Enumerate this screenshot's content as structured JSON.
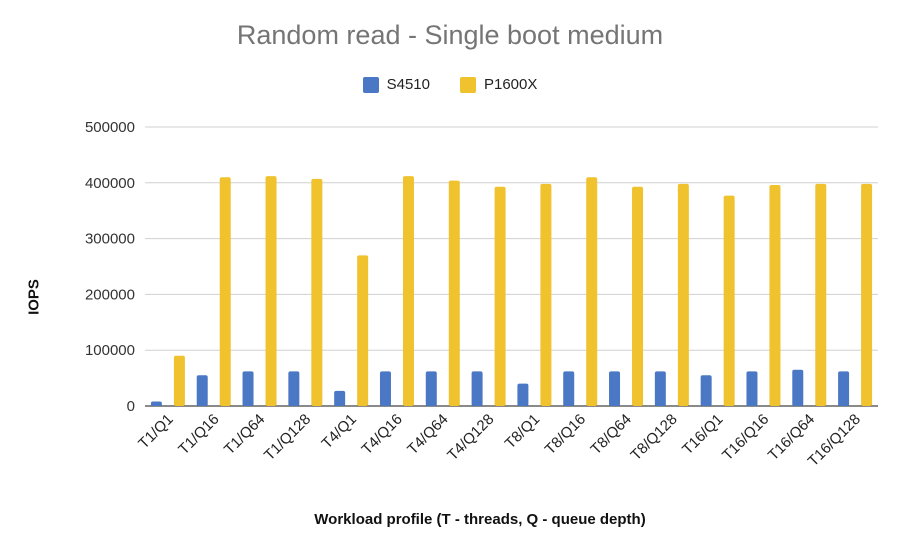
{
  "chart_data": {
    "type": "bar",
    "title": "Random read - Single boot medium",
    "xlabel": "Workload profile (T - threads, Q - queue depth)",
    "ylabel": "IOPS",
    "ylim": [
      0,
      500000
    ],
    "yticks": [
      0,
      100000,
      200000,
      300000,
      400000,
      500000
    ],
    "grid": true,
    "legend_position": "top-center",
    "categories": [
      "T1/Q1",
      "T1/Q16",
      "T1/Q64",
      "T1/Q128",
      "T4/Q1",
      "T4/Q16",
      "T4/Q64",
      "T4/Q128",
      "T8/Q1",
      "T8/Q16",
      "T8/Q64",
      "T8/Q128",
      "T16/Q1",
      "T16/Q16",
      "T16/Q64",
      "T16/Q128"
    ],
    "series": [
      {
        "name": "S4510",
        "color": "#4a78c4",
        "values": [
          8000,
          55000,
          62000,
          62000,
          27000,
          62000,
          62000,
          62000,
          40000,
          62000,
          62000,
          62000,
          55000,
          62000,
          65000,
          62000
        ]
      },
      {
        "name": "P1600X",
        "color": "#efc22e",
        "values": [
          90000,
          410000,
          412000,
          407000,
          270000,
          412000,
          404000,
          393000,
          398000,
          410000,
          393000,
          398000,
          377000,
          396000,
          398000,
          398000
        ]
      }
    ]
  }
}
